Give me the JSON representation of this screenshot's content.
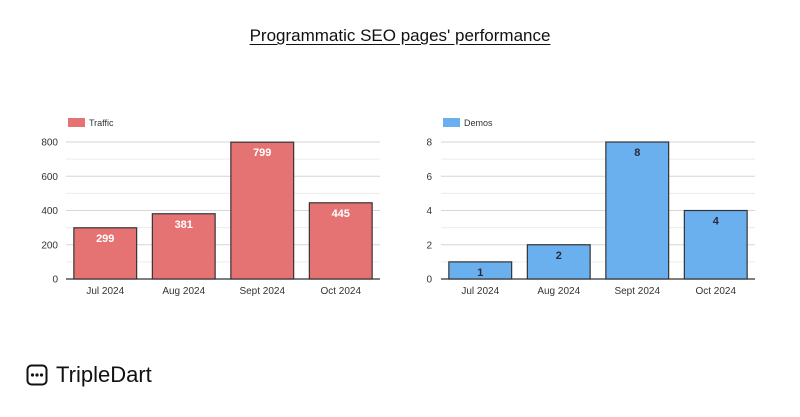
{
  "page": {
    "title": "Programmatic SEO pages' performance",
    "brand_name": "TripleDart"
  },
  "chart_data": [
    {
      "type": "bar",
      "categories": [
        "Jul 2024",
        "Aug 2024",
        "Sept 2024",
        "Oct 2024"
      ],
      "series": [
        {
          "name": "Traffic",
          "values": [
            299,
            381,
            799,
            445
          ]
        }
      ],
      "ylim": [
        0,
        800
      ],
      "yticks": [
        0,
        200,
        400,
        600,
        800
      ],
      "grid": true,
      "legend_position": "top-left",
      "bar_color": "#e57373",
      "label_color": "#ffffff"
    },
    {
      "type": "bar",
      "categories": [
        "Jul 2024",
        "Aug 2024",
        "Sept 2024",
        "Oct 2024"
      ],
      "series": [
        {
          "name": "Demos",
          "values": [
            1,
            2,
            8,
            4
          ]
        }
      ],
      "ylim": [
        0,
        8
      ],
      "yticks": [
        0,
        2,
        4,
        6,
        8
      ],
      "grid": true,
      "legend_position": "top-left",
      "bar_color": "#6ab0ee",
      "label_color": "#2b2b3a"
    }
  ]
}
